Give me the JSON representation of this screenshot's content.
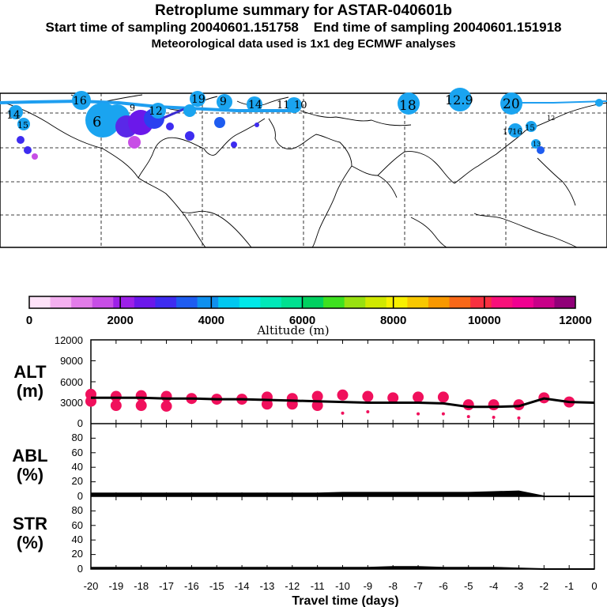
{
  "header": {
    "title": "Retroplume summary for ASTAR-040601b",
    "start_label": "Start time of sampling 20040601.151758",
    "end_label": "End time of sampling 20040601.151918",
    "met_label": "Meteorological data used is 1x1 deg ECMWF analyses"
  },
  "map": {
    "labels": [
      "14",
      "15",
      "16",
      "12",
      "9",
      "19",
      "9",
      "14",
      "11",
      "10",
      "18",
      "12.9",
      "20",
      "17",
      "16",
      "15",
      "12",
      "13",
      "6"
    ]
  },
  "colorbar": {
    "colors": [
      "#fde2f8",
      "#f4b0f0",
      "#e27ce9",
      "#c74ee6",
      "#9d20e8",
      "#6b18ea",
      "#3e2cf0",
      "#1e5cf0",
      "#0f90ee",
      "#00c8f0",
      "#00e8e8",
      "#00e8b8",
      "#00e090",
      "#00d060",
      "#3ee020",
      "#98e010",
      "#d0e800",
      "#f8f000",
      "#f8c800",
      "#f89800",
      "#f86818",
      "#f83040",
      "#f8107a",
      "#f00090",
      "#c80088",
      "#900078"
    ],
    "tick_labels": [
      "0",
      "2000",
      "4000",
      "6000",
      "8000",
      "10000",
      "12000"
    ],
    "label": "Altitude (m)"
  },
  "panels": {
    "alt": {
      "label1": "ALT",
      "label2": "(m)",
      "yticks": [
        "12000",
        "9000",
        "6000",
        "3000",
        "0"
      ]
    },
    "abl": {
      "label1": "ABL",
      "label2": "(%)",
      "yticks": [
        "80",
        "60",
        "40",
        "20",
        "0"
      ]
    },
    "str": {
      "label1": "STR",
      "label2": "(%)",
      "yticks": [
        "80",
        "60",
        "40",
        "20",
        "0"
      ]
    }
  },
  "chart_data": [
    {
      "type": "line",
      "title": "ALT",
      "ylabel": "ALT (m)",
      "xlabel": "Travel time (days)",
      "x": [
        -20,
        -19,
        -18,
        -17,
        -16,
        -15,
        -14,
        -13,
        -12,
        -11,
        -10,
        -9,
        -8,
        -7,
        -6,
        -5,
        -4,
        -3,
        -2,
        -1,
        0
      ],
      "ylim": [
        0,
        12000
      ],
      "series": [
        {
          "name": "mean altitude",
          "color": "#000000",
          "values": [
            3700,
            3700,
            3700,
            3600,
            3600,
            3500,
            3500,
            3400,
            3300,
            3200,
            3100,
            3000,
            3000,
            3000,
            2900,
            2400,
            2400,
            2500,
            3600,
            3100,
            3000
          ]
        }
      ],
      "points": {
        "name": "plume clusters",
        "color": "#f0105c",
        "x": [
          -20,
          -20,
          -19,
          -19,
          -18,
          -18,
          -17,
          -17,
          -16,
          -15,
          -14,
          -13,
          -13,
          -12,
          -12,
          -11,
          -11,
          -10,
          -10,
          -9,
          -9,
          -8,
          -7,
          -7,
          -6,
          -6,
          -5,
          -5,
          -4,
          -4,
          -3,
          -3,
          -2,
          -1
        ],
        "y": [
          4200,
          3200,
          3900,
          2600,
          4000,
          2600,
          3900,
          2500,
          3600,
          3500,
          3500,
          3800,
          2800,
          3600,
          2800,
          3900,
          2600,
          4100,
          1500,
          3900,
          1700,
          3700,
          3800,
          1400,
          3800,
          1400,
          2700,
          1000,
          2700,
          900,
          2700,
          800,
          3700,
          3100
        ]
      }
    },
    {
      "type": "area",
      "title": "ABL",
      "ylabel": "ABL (%)",
      "xlabel": "Travel time (days)",
      "x": [
        -20,
        -19,
        -18,
        -17,
        -16,
        -15,
        -14,
        -13,
        -12,
        -11,
        -10,
        -9,
        -8,
        -7,
        -6,
        -5,
        -4,
        -3,
        -2,
        -1,
        0
      ],
      "ylim": [
        0,
        100
      ],
      "series": [
        {
          "name": "ABL fraction",
          "values": [
            4,
            4,
            4,
            4,
            4,
            4,
            4,
            4,
            4,
            4,
            5,
            5,
            5,
            5,
            5,
            5,
            6,
            7,
            0,
            0,
            0
          ]
        }
      ]
    },
    {
      "type": "area",
      "title": "STR",
      "ylabel": "STR (%)",
      "xlabel": "Travel time (days)",
      "x": [
        -20,
        -19,
        -18,
        -17,
        -16,
        -15,
        -14,
        -13,
        -12,
        -11,
        -10,
        -9,
        -8,
        -7,
        -6,
        -5,
        -4,
        -3,
        -2,
        -1,
        0
      ],
      "ylim": [
        0,
        100
      ],
      "series": [
        {
          "name": "stratospheric fraction",
          "values": [
            2,
            2,
            2,
            2,
            2,
            2,
            2,
            2,
            2,
            2,
            2,
            2,
            3,
            3,
            2,
            2,
            2,
            1,
            0,
            0,
            0
          ]
        }
      ]
    }
  ],
  "xaxis": {
    "tick_labels": [
      "-20",
      "-19",
      "-18",
      "-17",
      "-16",
      "-15",
      "-14",
      "-13",
      "-12",
      "-11",
      "-10",
      "-9",
      "-8",
      "-7",
      "-6",
      "-5",
      "-4",
      "-3",
      "-2",
      "-1",
      "0"
    ],
    "label": "Travel time (days)"
  }
}
